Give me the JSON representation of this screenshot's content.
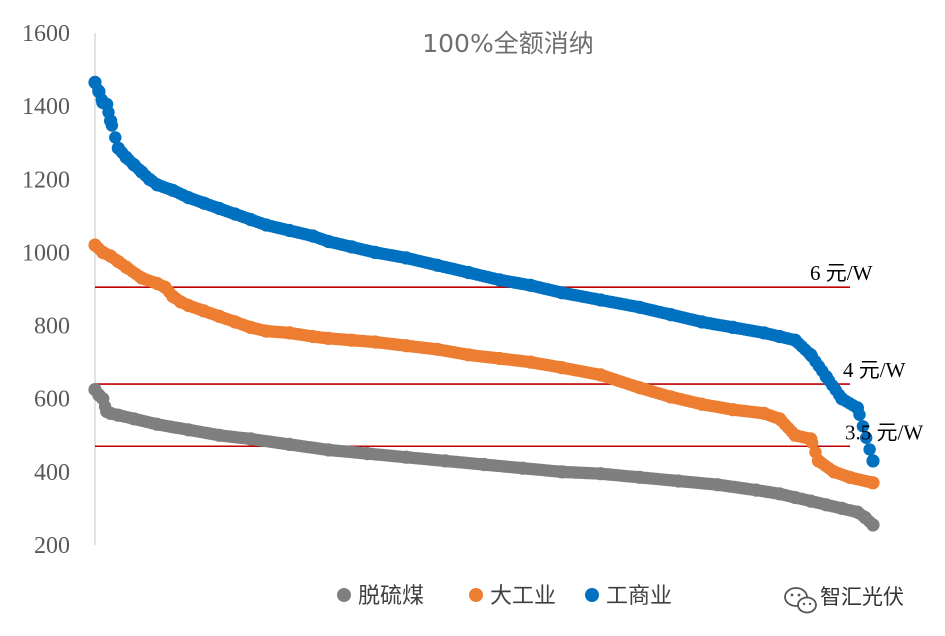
{
  "chart_data": {
    "type": "scatter",
    "title": "100%全额消纳",
    "xlabel": "",
    "ylabel": "",
    "ylim": [
      200,
      1600
    ],
    "yticks": [
      200,
      400,
      600,
      800,
      1000,
      1200,
      1400,
      1600
    ],
    "x_range": [
      0,
      100
    ],
    "grid": false,
    "legend": {
      "placement": "bottom",
      "entries": [
        "脱硫煤",
        "大工业",
        "工商业"
      ]
    },
    "series": [
      {
        "name": "工商业",
        "color": "#0070c0",
        "x": [
          0,
          0.5,
          1,
          1.5,
          2,
          3,
          4,
          5,
          6,
          7,
          8,
          10,
          12,
          14,
          16,
          18,
          20,
          22,
          25,
          28,
          30,
          33,
          36,
          40,
          44,
          48,
          52,
          56,
          60,
          65,
          70,
          74,
          78,
          82,
          86,
          88,
          90,
          92,
          94,
          96,
          98,
          100
        ],
        "values": [
          1465,
          1440,
          1410,
          1405,
          1360,
          1285,
          1260,
          1240,
          1220,
          1200,
          1185,
          1170,
          1150,
          1135,
          1120,
          1105,
          1090,
          1075,
          1060,
          1045,
          1030,
          1015,
          1000,
          985,
          965,
          945,
          925,
          910,
          890,
          870,
          850,
          830,
          810,
          795,
          780,
          770,
          760,
          720,
          660,
          600,
          575,
          430
        ]
      },
      {
        "name": "大工业",
        "color": "#ed7d31",
        "x": [
          0,
          1,
          2,
          3,
          4,
          6,
          8,
          9,
          10,
          11,
          12,
          14,
          16,
          18,
          20,
          22,
          25,
          28,
          30,
          33,
          36,
          40,
          44,
          48,
          52,
          56,
          60,
          65,
          70,
          74,
          78,
          82,
          86,
          88,
          90,
          92,
          93,
          95,
          97,
          100
        ],
        "values": [
          1020,
          1000,
          990,
          975,
          960,
          930,
          915,
          905,
          880,
          865,
          855,
          840,
          825,
          810,
          795,
          785,
          780,
          770,
          765,
          760,
          755,
          745,
          735,
          720,
          710,
          700,
          685,
          665,
          630,
          605,
          585,
          570,
          560,
          545,
          500,
          490,
          430,
          400,
          385,
          370
        ]
      },
      {
        "name": "脱硫煤",
        "color": "#7f7f7f",
        "x": [
          0,
          0.5,
          1,
          1.5,
          2,
          3,
          5,
          8,
          12,
          16,
          20,
          25,
          30,
          35,
          40,
          45,
          50,
          55,
          60,
          65,
          70,
          75,
          80,
          85,
          88,
          90,
          92,
          94,
          96,
          98,
          99,
          100
        ],
        "values": [
          625,
          610,
          600,
          565,
          560,
          555,
          545,
          530,
          515,
          500,
          490,
          475,
          460,
          450,
          440,
          430,
          420,
          410,
          400,
          395,
          385,
          375,
          365,
          350,
          340,
          330,
          320,
          310,
          300,
          290,
          275,
          255
        ]
      }
    ],
    "reference_lines": [
      {
        "value": 905,
        "label": "6 元/W",
        "color": "#c00000"
      },
      {
        "value": 640,
        "label": "4 元/W",
        "color": "#c00000"
      },
      {
        "value": 470,
        "label": "3.5 元/W",
        "color": "#c00000"
      }
    ]
  },
  "watermark": {
    "text": "智汇光伏",
    "icon": "wechat-icon"
  }
}
